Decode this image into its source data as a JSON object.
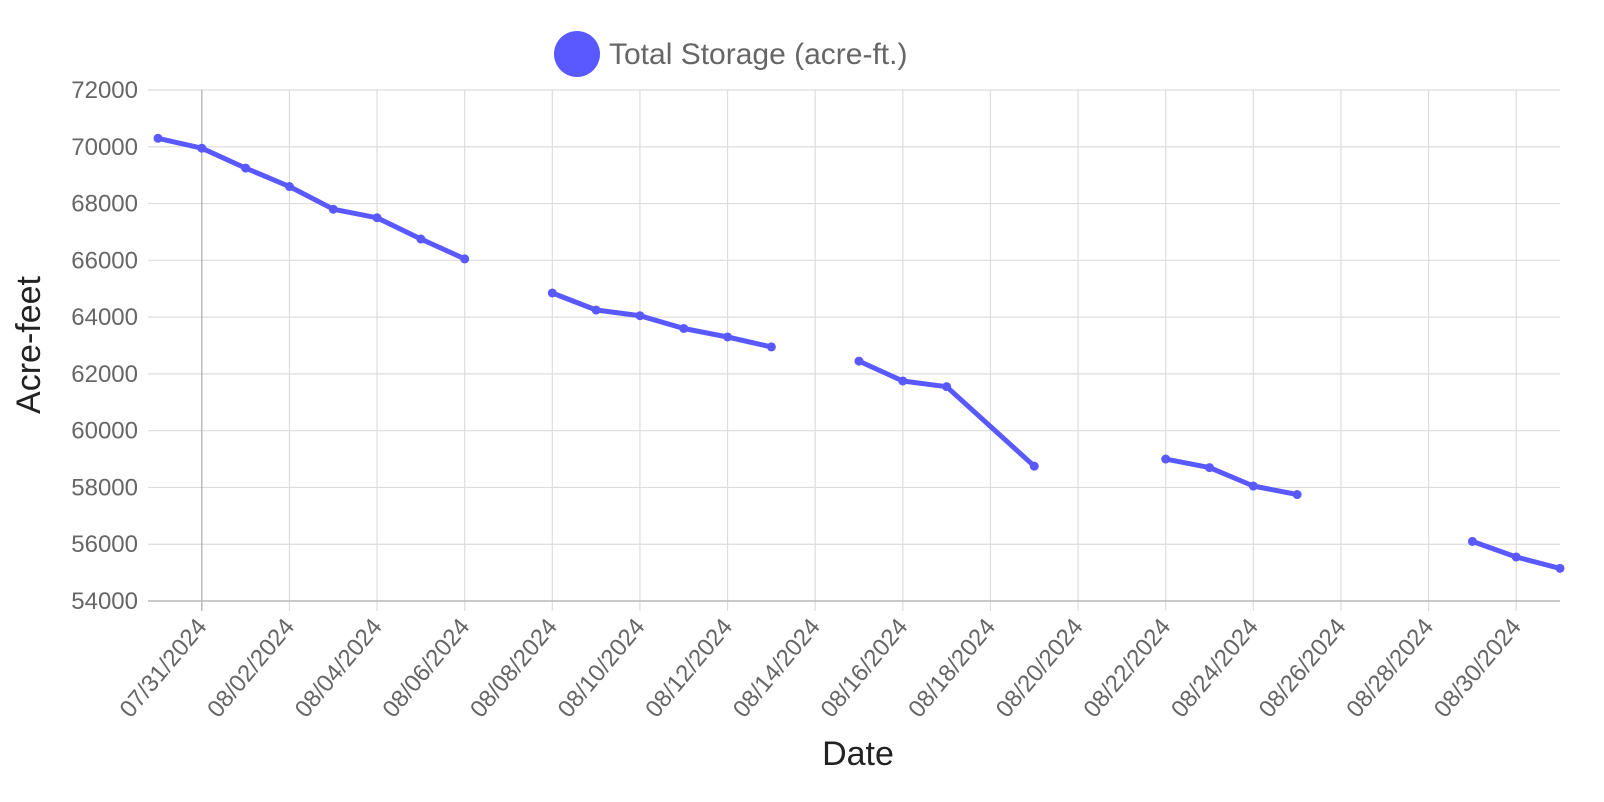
{
  "chart_data": {
    "type": "line",
    "xlabel": "Date",
    "ylabel": "Acre-feet",
    "ylim": [
      54000,
      72000
    ],
    "y_ticks": [
      "72000",
      "70000",
      "68000",
      "66000",
      "64000",
      "62000",
      "60000",
      "58000",
      "56000",
      "54000"
    ],
    "x_range": [
      "2024-07-30",
      "2024-08-31"
    ],
    "x_ticks": [
      "07/31/2024",
      "08/02/2024",
      "08/04/2024",
      "08/06/2024",
      "08/08/2024",
      "08/10/2024",
      "08/12/2024",
      "08/14/2024",
      "08/16/2024",
      "08/18/2024",
      "08/20/2024",
      "08/22/2024",
      "08/24/2024",
      "08/26/2024",
      "08/28/2024",
      "08/30/2024"
    ],
    "grid": true,
    "legend_position": "top",
    "series": [
      {
        "name": "Total Storage (acre-ft.)",
        "color": "#5959ff",
        "segments": [
          [
            {
              "x": "2024-07-30",
              "y": 70300
            },
            {
              "x": "2024-07-31",
              "y": 69950
            },
            {
              "x": "2024-08-01",
              "y": 69250
            },
            {
              "x": "2024-08-02",
              "y": 68600
            },
            {
              "x": "2024-08-03",
              "y": 67800
            },
            {
              "x": "2024-08-04",
              "y": 67500
            },
            {
              "x": "2024-08-05",
              "y": 66750
            },
            {
              "x": "2024-08-06",
              "y": 66050
            }
          ],
          [
            {
              "x": "2024-08-08",
              "y": 64850
            },
            {
              "x": "2024-08-09",
              "y": 64250
            },
            {
              "x": "2024-08-10",
              "y": 64050
            },
            {
              "x": "2024-08-11",
              "y": 63600
            },
            {
              "x": "2024-08-12",
              "y": 63300
            },
            {
              "x": "2024-08-13",
              "y": 62950
            }
          ],
          [
            {
              "x": "2024-08-15",
              "y": 62450
            },
            {
              "x": "2024-08-16",
              "y": 61750
            },
            {
              "x": "2024-08-17",
              "y": 61550
            },
            {
              "x": "2024-08-19",
              "y": 58750
            }
          ],
          [
            {
              "x": "2024-08-22",
              "y": 59000
            },
            {
              "x": "2024-08-23",
              "y": 58700
            },
            {
              "x": "2024-08-24",
              "y": 58050
            },
            {
              "x": "2024-08-25",
              "y": 57750
            }
          ],
          [
            {
              "x": "2024-08-29",
              "y": 56100
            },
            {
              "x": "2024-08-30",
              "y": 55550
            },
            {
              "x": "2024-08-31",
              "y": 55150
            }
          ]
        ]
      }
    ]
  }
}
